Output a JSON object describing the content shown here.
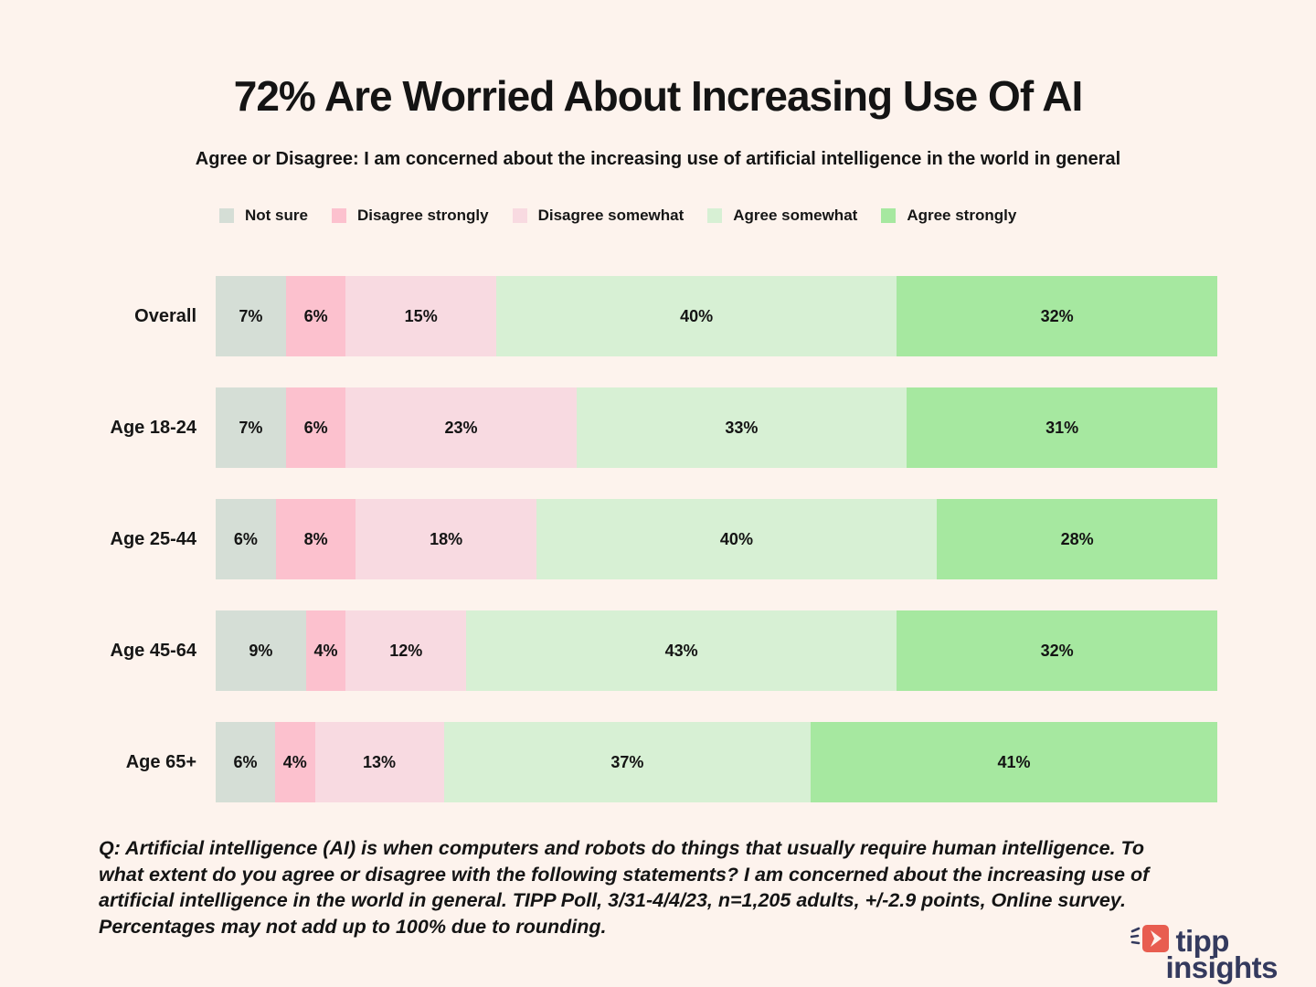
{
  "title": "72% Are Worried About Increasing Use Of AI",
  "subtitle": "Agree or Disagree: I am concerned about the increasing use of artificial intelligence in the world in general",
  "colors": {
    "background": "#fdf3ed",
    "text": "#141414",
    "logo_navy": "#343a5e",
    "logo_red": "#e85d50"
  },
  "chart_data": {
    "type": "bar",
    "variant": "horizontal-stacked-100",
    "unit": "%",
    "categories": [
      "Overall",
      "Age 18-24",
      "Age 25-44",
      "Age 45-64",
      "Age 65+"
    ],
    "series": [
      {
        "name": "Not sure",
        "color": "#d5ded6",
        "values": [
          7,
          7,
          6,
          9,
          6
        ]
      },
      {
        "name": "Disagree strongly",
        "color": "#fcc1ce",
        "values": [
          6,
          6,
          8,
          4,
          4
        ]
      },
      {
        "name": "Disagree somewhat",
        "color": "#f8dae1",
        "values": [
          15,
          23,
          18,
          12,
          13
        ]
      },
      {
        "name": "Agree somewhat",
        "color": "#d7f0d4",
        "values": [
          40,
          33,
          40,
          43,
          37
        ]
      },
      {
        "name": "Agree strongly",
        "color": "#a6e8a0",
        "values": [
          32,
          31,
          28,
          32,
          41
        ]
      }
    ],
    "legend_position": "top",
    "grid": false,
    "value_labels": "inside-center"
  },
  "footer": {
    "lines": [
      "Q: Artificial intelligence (AI) is when computers and robots do things that usually require human intelligence. To",
      "what extent do you agree or disagree with the following statements? I am concerned about the increasing use of",
      "artificial intelligence in the world in general. TIPP Poll, 3/31-4/4/23, n=1,205 adults, +/-2.9 points, Online survey.",
      "Percentages may not add up to 100% due to rounding."
    ]
  },
  "logo": {
    "line1": "tipp",
    "line2": "insights"
  }
}
